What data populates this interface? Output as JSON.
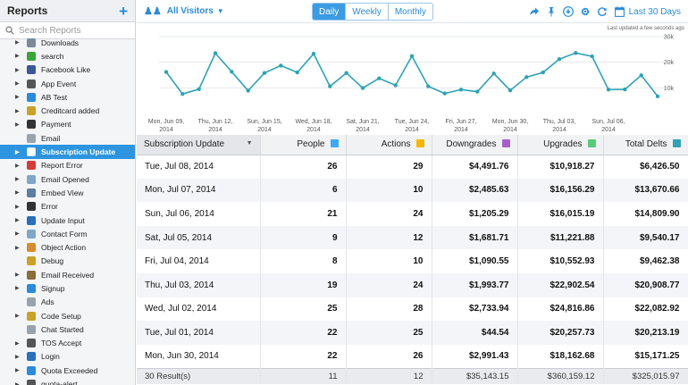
{
  "sidebar": {
    "title": "Reports",
    "add_label": "+",
    "search_placeholder": "Search Reports",
    "items": [
      {
        "label": "Downloads",
        "icon": "downloads-icon",
        "color": "#7a8a99",
        "expandable": true
      },
      {
        "label": "search",
        "icon": "checkmark-icon",
        "color": "#3aa53a",
        "expandable": true
      },
      {
        "label": "Facebook Like",
        "icon": "thumbs-up-icon",
        "color": "#3b5998",
        "expandable": true
      },
      {
        "label": "App Event",
        "icon": "app-event-icon",
        "color": "#555555",
        "expandable": true
      },
      {
        "label": "AB Test",
        "icon": "ab-test-icon",
        "color": "#2a8bd8",
        "expandable": true
      },
      {
        "label": "Creditcard added",
        "icon": "credit-card-icon",
        "color": "#c9a227",
        "expandable": true
      },
      {
        "label": "Payment",
        "icon": "dollar-icon",
        "color": "#333333",
        "expandable": true
      },
      {
        "label": "Email",
        "icon": "envelope-icon",
        "color": "#9aa3ad",
        "expandable": false
      },
      {
        "label": "Subscription Update",
        "icon": "subscription-icon",
        "color": "#ffffff",
        "expandable": true,
        "active": true
      },
      {
        "label": "Report Error",
        "icon": "flag-icon",
        "color": "#d23c3c",
        "expandable": true
      },
      {
        "label": "Email Opened",
        "icon": "envelope-open-icon",
        "color": "#7fa7c9",
        "expandable": true
      },
      {
        "label": "Embed View",
        "icon": "embed-icon",
        "color": "#5b7fa3",
        "expandable": true
      },
      {
        "label": "Error",
        "icon": "bomb-icon",
        "color": "#333333",
        "expandable": true
      },
      {
        "label": "Update Input",
        "icon": "checkbox-icon",
        "color": "#2a6fb8",
        "expandable": true
      },
      {
        "label": "Contact Form",
        "icon": "contact-form-icon",
        "color": "#7fa7c9",
        "expandable": true
      },
      {
        "label": "Object Action",
        "icon": "object-action-icon",
        "color": "#d98c2b",
        "expandable": true
      },
      {
        "label": "Debug",
        "icon": "bug-icon",
        "color": "#c9a227",
        "expandable": false
      },
      {
        "label": "Email Received",
        "icon": "inbox-icon",
        "color": "#8a6d3b",
        "expandable": true
      },
      {
        "label": "Signup",
        "icon": "signup-icon",
        "color": "#2a8bd8",
        "expandable": true
      },
      {
        "label": "Ads",
        "icon": "ads-icon",
        "color": "#9aa3ad",
        "expandable": false
      },
      {
        "label": "Code Setup",
        "icon": "code-icon",
        "color": "#c9a227",
        "expandable": true
      },
      {
        "label": "Chat Started",
        "icon": "chat-icon",
        "color": "#9aa3ad",
        "expandable": false
      },
      {
        "label": "TOS Accept",
        "icon": "document-icon",
        "color": "#555555",
        "expandable": true
      },
      {
        "label": "Login",
        "icon": "login-icon",
        "color": "#2a6fb8",
        "expandable": true
      },
      {
        "label": "Quota Exceeded",
        "icon": "quota-icon",
        "color": "#2a8bd8",
        "expandable": true
      },
      {
        "label": "quota-alert",
        "icon": "alert-icon",
        "color": "#555555",
        "expandable": true
      }
    ]
  },
  "topbar": {
    "segment_label": "All Visitors",
    "period_tabs": [
      {
        "label": "Daily",
        "active": true
      },
      {
        "label": "Weekly",
        "active": false
      },
      {
        "label": "Monthly",
        "active": false
      }
    ],
    "tool_icons": [
      "share-icon",
      "pin-icon",
      "download-icon",
      "gear-icon",
      "refresh-icon"
    ],
    "date_range": "Last 30 Days",
    "accent_color": "#2a8bd8"
  },
  "chart_data": {
    "type": "line",
    "annotation": "Last updated a few seconds ago",
    "y_ticks": [
      "30k",
      "20k",
      "10k"
    ],
    "ylim": [
      0,
      30000
    ],
    "x_labels": [
      [
        "Mon, Jun 09,",
        "2014"
      ],
      [
        "Thu, Jun 12,",
        "2014"
      ],
      [
        "Sun, Jun 15,",
        "2014"
      ],
      [
        "Wed, Jun 18,",
        "2014"
      ],
      [
        "Sat, Jun 21,",
        "2014"
      ],
      [
        "Tue, Jun 24,",
        "2014"
      ],
      [
        "Fri, Jun 27,",
        "2014"
      ],
      [
        "Mon, Jun 30,",
        "2014"
      ],
      [
        "Thu, Jul 03,",
        "2014"
      ],
      [
        "Sun, Jul 06,",
        "2014"
      ]
    ],
    "line_color": "#2ea3b3",
    "series": [
      {
        "values": [
          16200,
          7600,
          9500,
          23500,
          16300,
          8900,
          15800,
          18700,
          16000,
          23300,
          10600,
          15800,
          9900,
          13700,
          11000,
          22400,
          10600,
          7800,
          9300,
          8500,
          15600,
          9000,
          14200,
          16000,
          21200,
          23600,
          22300,
          9300,
          9400,
          14900,
          6700
        ]
      }
    ]
  },
  "table": {
    "columns": [
      {
        "label": "Subscription Update",
        "color": ""
      },
      {
        "label": "People",
        "color": "#3fa9f5"
      },
      {
        "label": "Actions",
        "color": "#f5b700"
      },
      {
        "label": "Downgrades",
        "color": "#a65fc9"
      },
      {
        "label": "Upgrades",
        "color": "#5cc97b"
      },
      {
        "label": "Total Delts",
        "color": "#2ea3b3"
      }
    ],
    "rows": [
      [
        "Tue, Jul 08, 2014",
        "26",
        "29",
        "$4,491.76",
        "$10,918.27",
        "$6,426.50"
      ],
      [
        "Mon, Jul 07, 2014",
        "6",
        "10",
        "$2,485.63",
        "$16,156.29",
        "$13,670.66"
      ],
      [
        "Sun, Jul 06, 2014",
        "21",
        "24",
        "$1,205.29",
        "$16,015.19",
        "$14,809.90"
      ],
      [
        "Sat, Jul 05, 2014",
        "9",
        "12",
        "$1,681.71",
        "$11,221.88",
        "$9,540.17"
      ],
      [
        "Fri, Jul 04, 2014",
        "8",
        "10",
        "$1,090.55",
        "$10,552.93",
        "$9,462.38"
      ],
      [
        "Thu, Jul 03, 2014",
        "19",
        "24",
        "$1,993.77",
        "$22,902.54",
        "$20,908.77"
      ],
      [
        "Wed, Jul 02, 2014",
        "25",
        "28",
        "$2,733.94",
        "$24,816.86",
        "$22,082.92"
      ],
      [
        "Tue, Jul 01, 2014",
        "22",
        "25",
        "$44.54",
        "$20,257.73",
        "$20,213.19"
      ],
      [
        "Mon, Jun 30, 2014",
        "22",
        "26",
        "$2,991.43",
        "$18,162.68",
        "$15,171.25"
      ]
    ],
    "footer": [
      "30 Result(s)",
      "11",
      "12",
      "$35,143.15",
      "$360,159.12",
      "$325,015.97"
    ]
  }
}
